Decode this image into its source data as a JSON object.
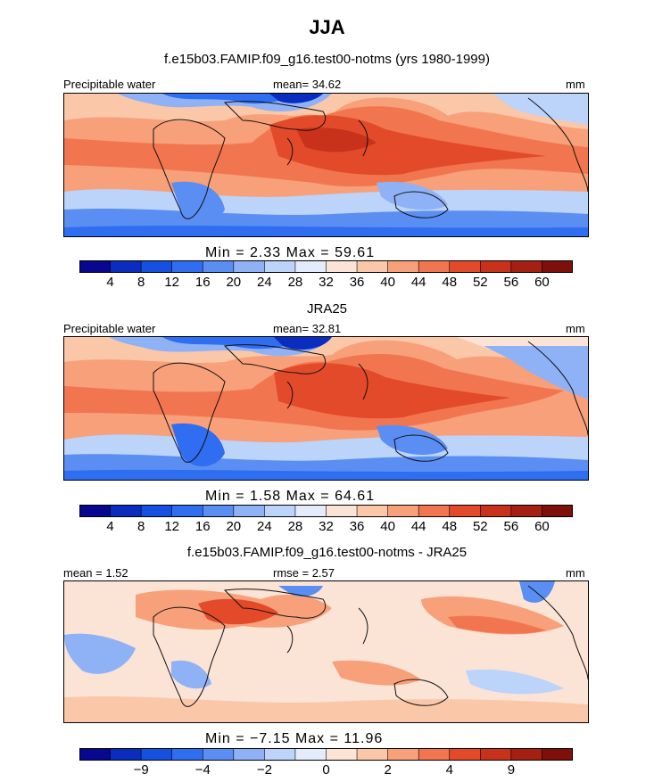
{
  "figure": {
    "title": "JJA"
  },
  "colors": {
    "scale": [
      "#08078f",
      "#0a2dbf",
      "#1550e0",
      "#2f6ef0",
      "#5a8ef3",
      "#8fb2f6",
      "#bcd3fa",
      "#e3ecfb",
      "#fbe3d6",
      "#fbc7a9",
      "#f7a07a",
      "#f17650",
      "#e34a2a",
      "#c8321a",
      "#a32012",
      "#7e0f0a"
    ],
    "land_line": "#111111"
  },
  "chart_data": [
    {
      "type": "heatmap",
      "title": "f.e15b03.FAMIP.f09_g16.test00-notms (yrs 1980-1999)",
      "left_label": "Precipitable water",
      "center_label": "mean=  34.62",
      "right_label": "mm",
      "min_max": "Min =    2.33  Max =   59.61",
      "colorbar_ticks": [
        "4",
        "8",
        "12",
        "16",
        "20",
        "24",
        "28",
        "32",
        "36",
        "40",
        "44",
        "48",
        "52",
        "56",
        "60"
      ],
      "mean": 34.62,
      "min": 2.33,
      "max": 59.61,
      "units": "mm"
    },
    {
      "type": "heatmap",
      "title": "JRA25",
      "left_label": "Precipitable water",
      "center_label": "mean=  32.81",
      "right_label": "mm",
      "min_max": "Min =    1.58  Max =   64.61",
      "colorbar_ticks": [
        "4",
        "8",
        "12",
        "16",
        "20",
        "24",
        "28",
        "32",
        "36",
        "40",
        "44",
        "48",
        "52",
        "56",
        "60"
      ],
      "mean": 32.81,
      "min": 1.58,
      "max": 64.61,
      "units": "mm"
    },
    {
      "type": "heatmap",
      "title": "f.e15b03.FAMIP.f09_g16.test00-notms - JRA25",
      "left_label": "mean =    1.52",
      "center_label": "rmse =    2.57",
      "right_label": "mm",
      "min_max": "Min =   −7.15  Max =   11.96",
      "colorbar_ticks": [
        "−9",
        "−4",
        "−2",
        "0",
        "2",
        "4",
        "9"
      ],
      "mean": 1.52,
      "rmse": 2.57,
      "min": -7.15,
      "max": 11.96,
      "units": "mm"
    }
  ]
}
